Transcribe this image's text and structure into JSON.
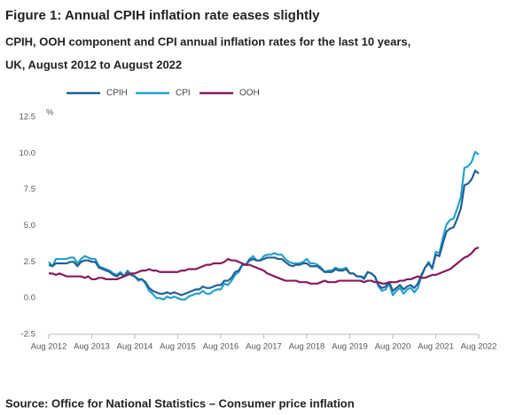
{
  "chart_data": {
    "type": "line",
    "title": "Figure 1: Annual CPIH inflation rate eases slightly",
    "subtitle": [
      "CPIH, OOH component and CPI annual inflation rates for the last 10 years,",
      "UK, August 2012 to August 2022"
    ],
    "y_unit": "%",
    "source": "Source: Office for National Statistics – Consumer price inflation",
    "categories": [
      "Aug 2012",
      null,
      null,
      null,
      null,
      null,
      null,
      null,
      null,
      null,
      null,
      null,
      "Aug 2013",
      null,
      null,
      null,
      null,
      null,
      null,
      null,
      null,
      null,
      null,
      null,
      "Aug 2014",
      null,
      null,
      null,
      null,
      null,
      null,
      null,
      null,
      null,
      null,
      null,
      "Aug 2015",
      null,
      null,
      null,
      null,
      null,
      null,
      null,
      null,
      null,
      null,
      null,
      "Aug 2016",
      null,
      null,
      null,
      null,
      null,
      null,
      null,
      null,
      null,
      null,
      null,
      "Aug 2017",
      null,
      null,
      null,
      null,
      null,
      null,
      null,
      null,
      null,
      null,
      null,
      "Aug 2018",
      null,
      null,
      null,
      null,
      null,
      null,
      null,
      null,
      null,
      null,
      null,
      "Aug 2019",
      null,
      null,
      null,
      null,
      null,
      null,
      null,
      null,
      null,
      null,
      null,
      "Aug 2020",
      null,
      null,
      null,
      null,
      null,
      null,
      null,
      null,
      null,
      null,
      null,
      "Aug 2021",
      null,
      null,
      null,
      null,
      null,
      null,
      null,
      null,
      null,
      null,
      null,
      "Aug 2022"
    ],
    "series": [
      {
        "name": "CPIH",
        "color": "#206095",
        "values": [
          2.3,
          2.2,
          2.4,
          2.4,
          2.4,
          2.4,
          2.5,
          2.5,
          2.2,
          2.5,
          2.6,
          2.6,
          2.5,
          2.5,
          2.1,
          2.0,
          1.9,
          1.8,
          1.6,
          1.5,
          1.7,
          1.5,
          1.8,
          1.6,
          1.5,
          1.3,
          1.3,
          1.1,
          0.7,
          0.5,
          0.4,
          0.3,
          0.3,
          0.4,
          0.3,
          0.4,
          0.3,
          0.2,
          0.3,
          0.4,
          0.5,
          0.6,
          0.6,
          0.8,
          0.7,
          0.7,
          0.8,
          0.9,
          0.9,
          1.2,
          1.2,
          1.4,
          1.8,
          1.9,
          2.3,
          2.3,
          2.6,
          2.7,
          2.6,
          2.6,
          2.7,
          2.8,
          2.8,
          2.8,
          2.7,
          2.7,
          2.5,
          2.3,
          2.2,
          2.3,
          2.3,
          2.4,
          2.4,
          2.2,
          2.2,
          2.2,
          2.0,
          1.8,
          1.8,
          1.8,
          2.0,
          1.9,
          1.9,
          2.0,
          1.7,
          1.7,
          1.5,
          1.5,
          1.4,
          1.8,
          1.7,
          1.5,
          0.9,
          0.7,
          0.8,
          1.1,
          0.5,
          0.7,
          0.9,
          0.6,
          0.8,
          0.9,
          0.7,
          1.0,
          1.6,
          2.1,
          2.4,
          2.1,
          3.0,
          2.9,
          3.8,
          4.6,
          4.8,
          4.9,
          5.5,
          6.2,
          7.8,
          7.9,
          8.2,
          8.8,
          8.6
        ]
      },
      {
        "name": "CPI",
        "color": "#27a0cc",
        "values": [
          2.5,
          2.2,
          2.7,
          2.7,
          2.7,
          2.7,
          2.8,
          2.8,
          2.4,
          2.7,
          2.9,
          2.8,
          2.7,
          2.7,
          2.2,
          2.1,
          2.0,
          1.9,
          1.7,
          1.6,
          1.8,
          1.5,
          1.9,
          1.6,
          1.5,
          1.2,
          1.3,
          1.0,
          0.5,
          0.3,
          0.0,
          0.0,
          -0.1,
          0.1,
          0.0,
          0.1,
          0.0,
          -0.1,
          -0.1,
          0.1,
          0.2,
          0.3,
          0.3,
          0.5,
          0.3,
          0.3,
          0.5,
          0.6,
          0.6,
          1.0,
          0.9,
          1.2,
          1.6,
          1.8,
          2.3,
          2.3,
          2.7,
          2.9,
          2.6,
          2.6,
          2.9,
          3.0,
          3.0,
          3.1,
          3.0,
          3.0,
          2.7,
          2.5,
          2.4,
          2.4,
          2.4,
          2.5,
          2.7,
          2.4,
          2.4,
          2.3,
          2.1,
          1.8,
          1.9,
          1.9,
          2.1,
          2.0,
          2.0,
          2.1,
          1.7,
          1.7,
          1.5,
          1.5,
          1.3,
          1.8,
          1.7,
          1.5,
          0.8,
          0.5,
          0.6,
          1.0,
          0.2,
          0.5,
          0.7,
          0.3,
          0.6,
          0.7,
          0.4,
          0.7,
          1.5,
          2.1,
          2.5,
          2.0,
          3.2,
          3.1,
          4.2,
          5.1,
          5.4,
          5.5,
          6.2,
          7.0,
          9.0,
          9.1,
          9.4,
          10.1,
          9.9
        ]
      },
      {
        "name": "OOH",
        "color": "#871a5b",
        "values": [
          1.7,
          1.7,
          1.6,
          1.7,
          1.6,
          1.5,
          1.5,
          1.5,
          1.5,
          1.5,
          1.4,
          1.5,
          1.3,
          1.3,
          1.4,
          1.4,
          1.3,
          1.3,
          1.3,
          1.3,
          1.4,
          1.5,
          1.6,
          1.7,
          1.7,
          1.8,
          1.9,
          1.9,
          2.0,
          1.9,
          1.9,
          1.8,
          1.8,
          1.8,
          1.8,
          1.8,
          1.8,
          1.9,
          1.9,
          2.0,
          2.0,
          2.0,
          2.1,
          2.2,
          2.3,
          2.3,
          2.4,
          2.4,
          2.4,
          2.5,
          2.7,
          2.6,
          2.6,
          2.5,
          2.4,
          2.3,
          2.3,
          2.2,
          2.1,
          2.0,
          1.9,
          1.7,
          1.6,
          1.5,
          1.4,
          1.3,
          1.2,
          1.2,
          1.2,
          1.2,
          1.1,
          1.1,
          1.1,
          1.0,
          1.0,
          1.0,
          1.1,
          1.2,
          1.1,
          1.1,
          1.1,
          1.2,
          1.2,
          1.2,
          1.2,
          1.2,
          1.2,
          1.2,
          1.1,
          1.2,
          1.2,
          1.1,
          1.1,
          1.0,
          1.0,
          1.1,
          1.1,
          1.1,
          1.2,
          1.2,
          1.3,
          1.3,
          1.4,
          1.5,
          1.4,
          1.4,
          1.5,
          1.6,
          1.6,
          1.7,
          1.8,
          1.9,
          2.0,
          2.2,
          2.4,
          2.6,
          2.8,
          2.9,
          3.1,
          3.4,
          3.5
        ]
      }
    ],
    "ylim": [
      -2.5,
      12.5
    ],
    "yticks": [
      -2.5,
      {
        "value": 0,
        "label": "0.0"
      },
      2.5,
      {
        "value": 5,
        "label": "5.0"
      },
      7.5,
      {
        "value": 10,
        "label": "10.0"
      },
      12.5
    ],
    "grid": false,
    "legend": "top-left"
  }
}
